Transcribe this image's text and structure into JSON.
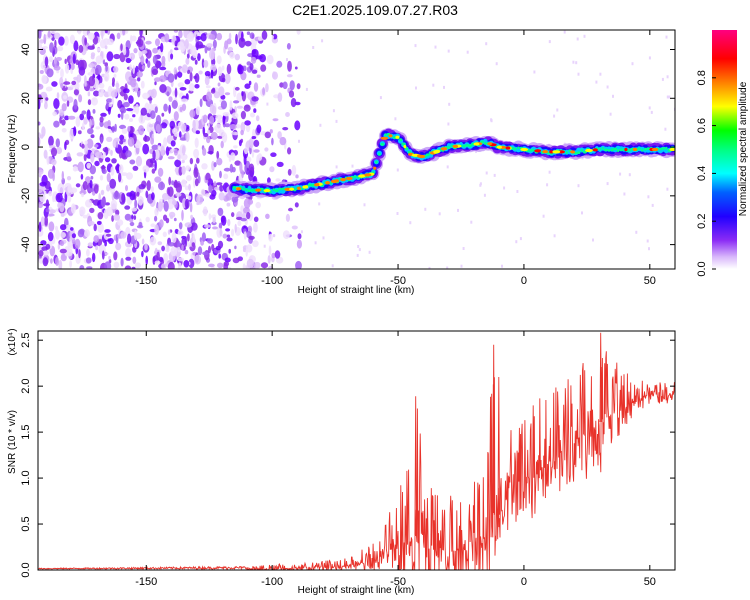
{
  "title": "C2E1.2025.109.07.27.R03",
  "chart_data": [
    {
      "type": "heatmap",
      "xlabel": "Height of straight line (km)",
      "ylabel": "Frequency (Hz)",
      "xlim": [
        -193,
        60
      ],
      "ylim": [
        -50,
        48
      ],
      "x_ticks": [
        -150,
        -100,
        -50,
        0,
        50
      ],
      "x_tick_labels": [
        "-150",
        "-100",
        "-50",
        "0",
        "50"
      ],
      "y_ticks": [
        -40,
        -20,
        0,
        20,
        40
      ],
      "y_tick_labels": [
        "-40",
        "-20",
        "0",
        "20",
        "40"
      ],
      "noise_region_x": [
        -193,
        -105
      ],
      "ridge": {
        "x": [
          -115,
          -100,
          -90,
          -80,
          -70,
          -60,
          -55,
          -50,
          -45,
          -40,
          -30,
          -20,
          -15,
          -10,
          0,
          10,
          20,
          30,
          40,
          50,
          60
        ],
        "y": [
          -17,
          -18,
          -17,
          -15,
          -13,
          -11,
          5,
          4,
          -3,
          -4,
          0,
          1,
          2,
          0,
          -1,
          -2,
          -2,
          -1,
          -1,
          -1,
          -1
        ]
      },
      "colorbar": {
        "label": "Normalized spectral amplitude",
        "ticks": [
          0.0,
          0.2,
          0.4,
          0.6,
          0.8
        ],
        "tick_labels": [
          "0.0",
          "0.2",
          "0.4",
          "0.6",
          "0.8"
        ],
        "range": [
          0,
          1
        ],
        "colors": [
          "#ffffff",
          "#b57cf5",
          "#6a00ff",
          "#0000ff",
          "#00ffff",
          "#00ff00",
          "#ffff00",
          "#ff7f00",
          "#ff0000",
          "#ff0080"
        ]
      }
    },
    {
      "type": "line",
      "xlabel": "Height of straight line (km)",
      "ylabel": "SNR (10 * v/v)",
      "y_multiplier": "(x10⁴)",
      "xlim": [
        -193,
        60
      ],
      "ylim": [
        0,
        2.6
      ],
      "x_ticks": [
        -150,
        -100,
        -50,
        0,
        50
      ],
      "x_tick_labels": [
        "-150",
        "-100",
        "-50",
        "0",
        "50"
      ],
      "y_ticks": [
        0.0,
        0.5,
        1.0,
        1.5,
        2.0,
        2.5
      ],
      "y_tick_labels": [
        "0.0",
        "0.5",
        "1.0",
        "1.5",
        "2.0",
        "2.5"
      ],
      "color": "#e8322a",
      "envelope": {
        "x": [
          -193,
          -150,
          -110,
          -100,
          -90,
          -80,
          -70,
          -60,
          -55,
          -50,
          -45,
          -42,
          -40,
          -35,
          -30,
          -25,
          -20,
          -15,
          -12,
          -10,
          -5,
          0,
          5,
          10,
          15,
          20,
          25,
          30,
          35,
          40,
          45,
          50,
          55,
          60
        ],
        "base": [
          0.01,
          0.01,
          0.01,
          0.01,
          0.02,
          0.03,
          0.05,
          0.1,
          0.2,
          0.25,
          0.35,
          0.4,
          0.3,
          0.25,
          0.2,
          0.2,
          0.3,
          0.4,
          0.6,
          0.6,
          0.9,
          1.0,
          1.05,
          1.2,
          1.3,
          1.4,
          1.5,
          1.6,
          1.7,
          1.75,
          1.85,
          1.9,
          1.9,
          1.9
        ],
        "peak": [
          0.02,
          0.03,
          0.04,
          0.06,
          0.08,
          0.1,
          0.15,
          0.3,
          0.5,
          0.9,
          1.2,
          1.9,
          1.3,
          0.9,
          0.8,
          1.0,
          1.4,
          1.5,
          2.45,
          1.2,
          1.6,
          1.8,
          1.9,
          1.9,
          2.2,
          2.3,
          2.4,
          2.6,
          2.3,
          2.2,
          2.1,
          2.05,
          2.05,
          2.05
        ]
      },
      "peaks": [
        {
          "x": -43,
          "y": 1.89
        },
        {
          "x": -12,
          "y": 2.45
        },
        {
          "x": -10,
          "y": 2.1
        },
        {
          "x": 30.5,
          "y": 2.58
        }
      ]
    }
  ]
}
